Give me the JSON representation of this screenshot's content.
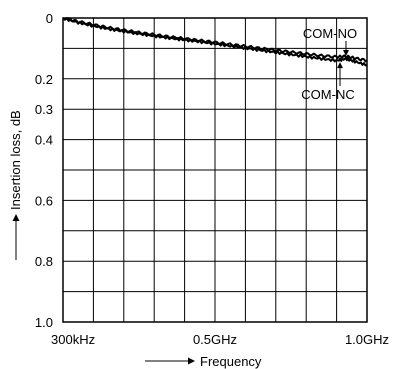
{
  "chart_data": {
    "type": "line",
    "title": "",
    "xlabel": "Frequency",
    "ylabel": "Insertion loss, dB",
    "x_ticks": [
      {
        "value": 0,
        "label": "300kHz"
      },
      {
        "value": 0.5,
        "label": "0.5GHz"
      },
      {
        "value": 1.0,
        "label": "1.0GHz"
      }
    ],
    "y_ticks": [
      {
        "value": 0,
        "label": "0"
      },
      {
        "value": 0.2,
        "label": "0.2"
      },
      {
        "value": 0.3,
        "label": "0.3"
      },
      {
        "value": 0.4,
        "label": "0.4"
      },
      {
        "value": 0.6,
        "label": "0.6"
      },
      {
        "value": 0.8,
        "label": "0.8"
      },
      {
        "value": 1.0,
        "label": "1.0"
      }
    ],
    "xlim": [
      0,
      1.0
    ],
    "ylim": [
      0,
      1.0
    ],
    "y_inverted": true,
    "grid": true,
    "series": [
      {
        "name": "COM-NO",
        "x": [
          0,
          0.05,
          0.1,
          0.15,
          0.2,
          0.25,
          0.3,
          0.35,
          0.4,
          0.45,
          0.5,
          0.55,
          0.6,
          0.65,
          0.7,
          0.75,
          0.8,
          0.85,
          0.9,
          0.93,
          0.96,
          1.0
        ],
        "y": [
          0.0,
          0.012,
          0.022,
          0.032,
          0.04,
          0.048,
          0.055,
          0.062,
          0.068,
          0.074,
          0.08,
          0.087,
          0.093,
          0.1,
          0.106,
          0.112,
          0.118,
          0.124,
          0.128,
          0.126,
          0.132,
          0.14
        ]
      },
      {
        "name": "COM-NC",
        "x": [
          0,
          0.05,
          0.1,
          0.15,
          0.2,
          0.25,
          0.3,
          0.35,
          0.4,
          0.45,
          0.5,
          0.55,
          0.6,
          0.65,
          0.7,
          0.75,
          0.8,
          0.85,
          0.9,
          0.93,
          0.96,
          1.0
        ],
        "y": [
          0.0,
          0.015,
          0.026,
          0.036,
          0.044,
          0.052,
          0.059,
          0.066,
          0.072,
          0.078,
          0.085,
          0.092,
          0.099,
          0.106,
          0.113,
          0.12,
          0.127,
          0.134,
          0.14,
          0.134,
          0.143,
          0.155
        ]
      }
    ],
    "annotations": [
      {
        "text": "COM-NO",
        "series": "COM-NO"
      },
      {
        "text": "COM-NC",
        "series": "COM-NC"
      }
    ]
  }
}
